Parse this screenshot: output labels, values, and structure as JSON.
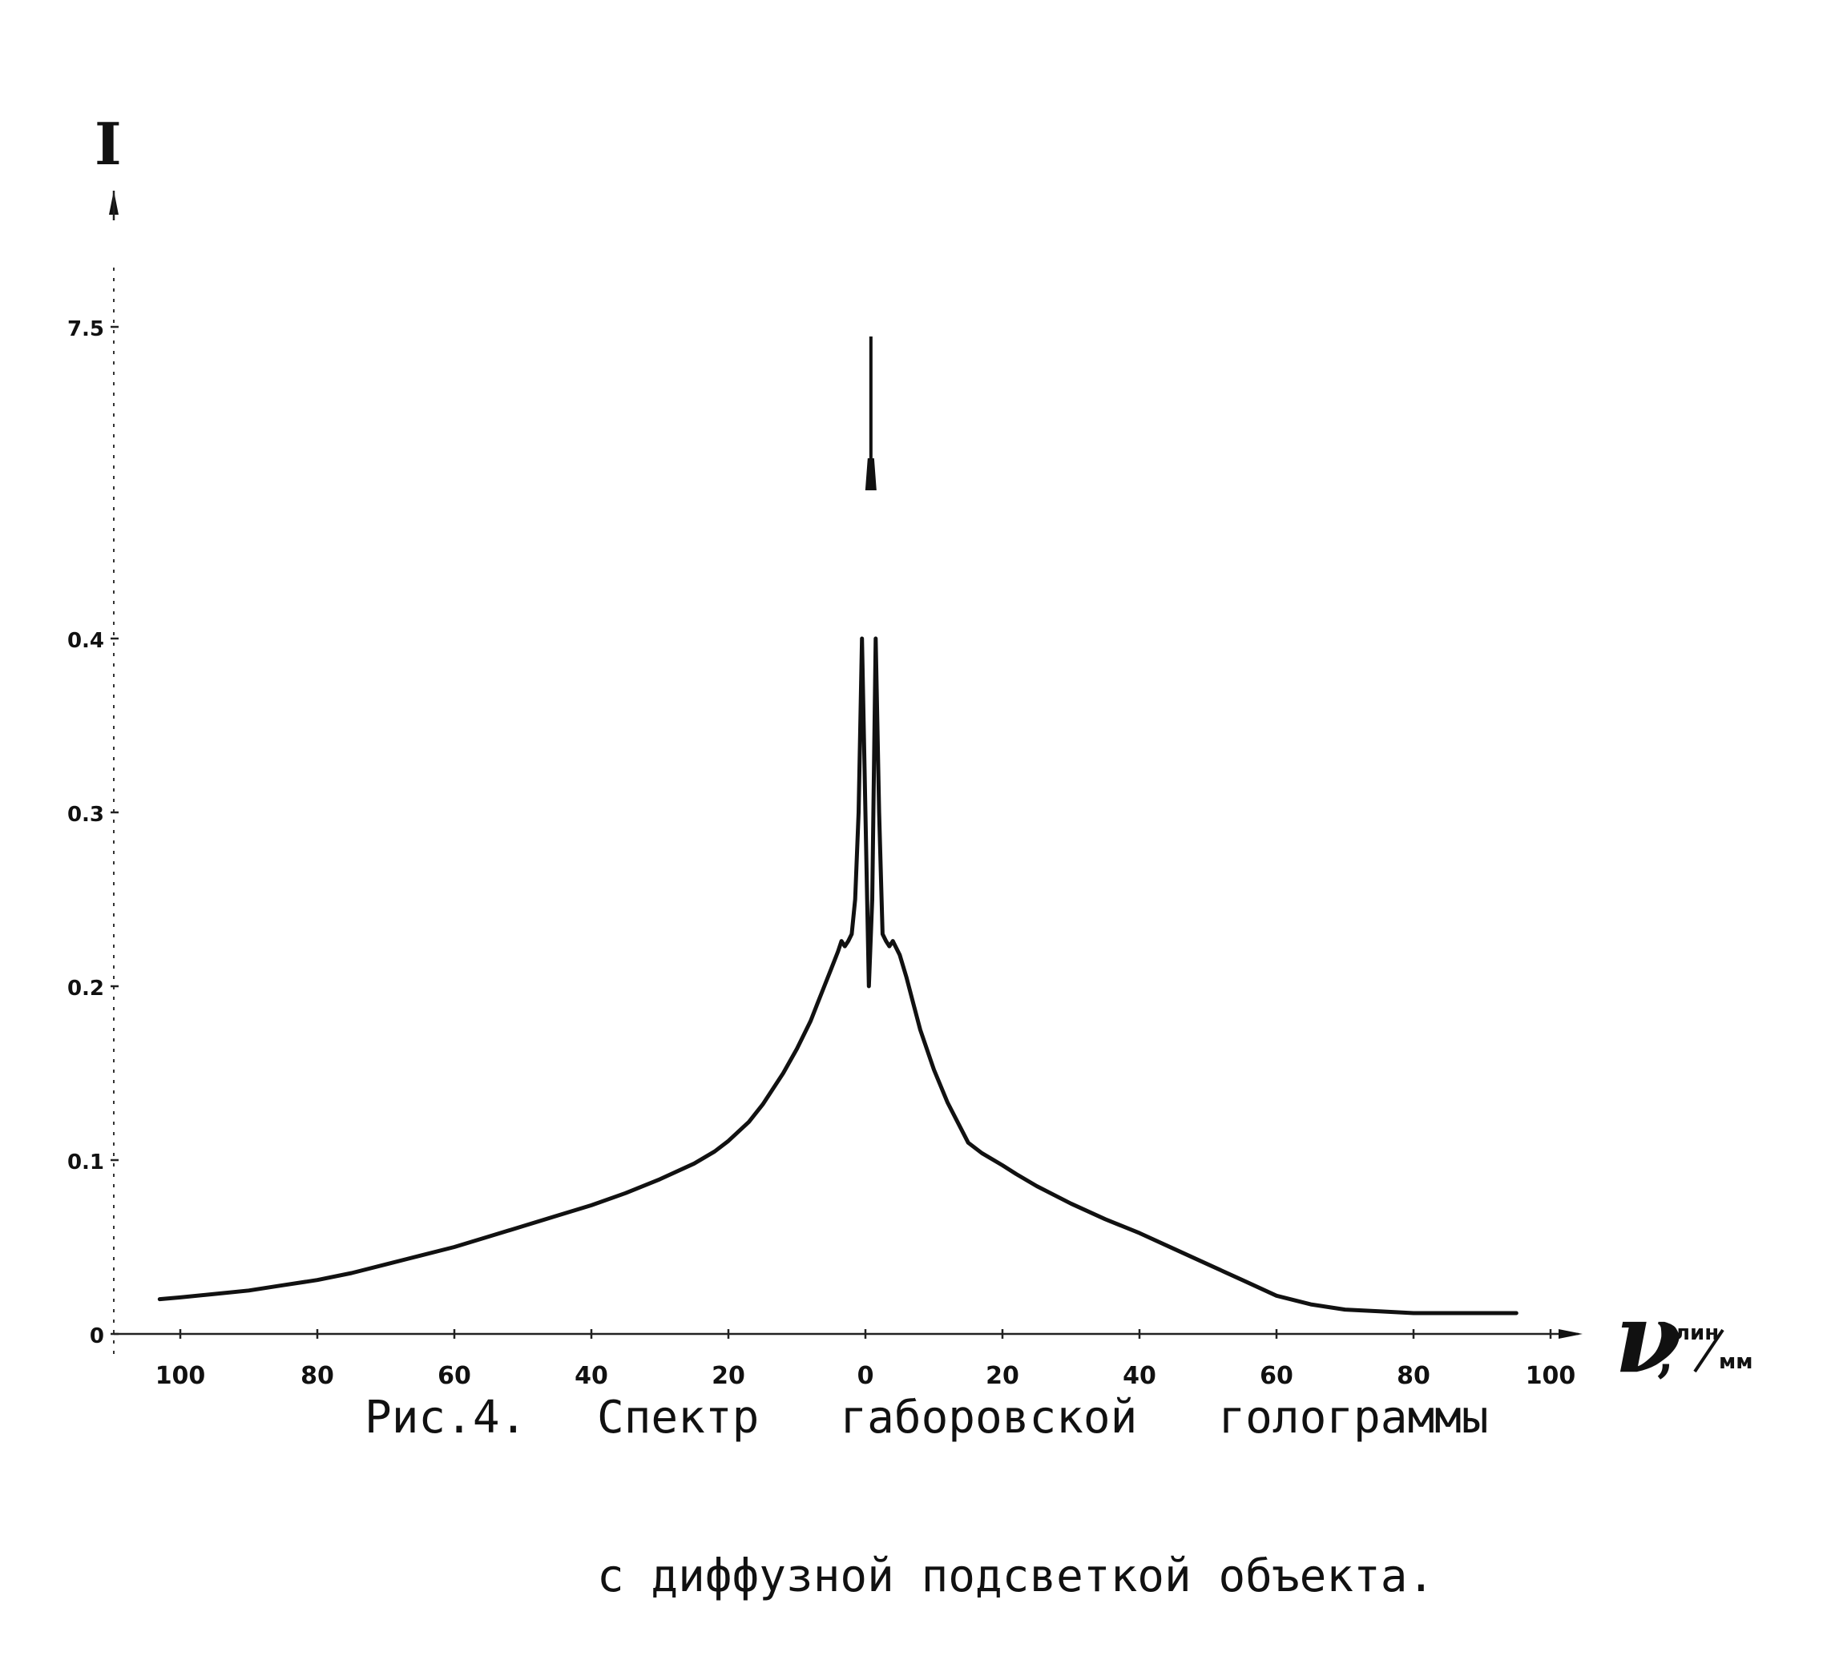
{
  "chart_data": {
    "type": "line",
    "ylabel": "I",
    "xlabel_symbol": "ν",
    "xlabel_unit_numerator": "лин",
    "xlabel_unit_denominator": "мм",
    "x_tick_labels": [
      "100",
      "80",
      "60",
      "40",
      "20",
      "0",
      "20",
      "40",
      "60",
      "80",
      "100"
    ],
    "x_tick_values": [
      -100,
      -80,
      -60,
      -40,
      -20,
      0,
      20,
      40,
      60,
      80,
      100
    ],
    "y_tick_labels": [
      "0",
      "0.1",
      "0.2",
      "0.3",
      "0.4",
      "7.5"
    ],
    "y_tick_values": [
      0,
      0.1,
      0.2,
      0.3,
      0.4,
      7.5
    ],
    "y_axis_break": true,
    "xlim": [
      -104,
      100
    ],
    "grid": false,
    "series": [
      {
        "values_x": [
          -103,
          -100,
          -95,
          -90,
          -85,
          -80,
          -75,
          -70,
          -65,
          -60,
          -55,
          -50,
          -45,
          -40,
          -35,
          -30,
          -25,
          -22,
          -20,
          -17,
          -15,
          -12,
          -10,
          -8,
          -7,
          -6,
          -5,
          -4,
          -3.5,
          -3,
          -2.5,
          -2,
          -1.5,
          -1,
          -0.5,
          0,
          0.5,
          1,
          1.5,
          2,
          2.5,
          3,
          3.5,
          4,
          5,
          6,
          7,
          8,
          10,
          12,
          15,
          17,
          20,
          22,
          25,
          30,
          35,
          40,
          45,
          50,
          55,
          60,
          65,
          70,
          75,
          80,
          85,
          90,
          95
        ],
        "values_y": [
          0.02,
          0.021,
          0.023,
          0.025,
          0.028,
          0.031,
          0.035,
          0.04,
          0.045,
          0.05,
          0.056,
          0.062,
          0.068,
          0.074,
          0.081,
          0.089,
          0.098,
          0.105,
          0.111,
          0.122,
          0.132,
          0.15,
          0.164,
          0.18,
          0.19,
          0.2,
          0.21,
          0.22,
          0.226,
          0.223,
          0.226,
          0.23,
          0.25,
          0.3,
          0.4,
          0.3,
          0.2,
          0.25,
          0.4,
          0.3,
          0.23,
          0.226,
          0.223,
          0.226,
          0.218,
          0.205,
          0.19,
          0.175,
          0.152,
          0.133,
          0.11,
          0.104,
          0.097,
          0.092,
          0.085,
          0.075,
          0.066,
          0.058,
          0.049,
          0.04,
          0.031,
          0.022,
          0.017,
          0.014,
          0.013,
          0.012,
          0.012,
          0.012,
          0.012
        ]
      }
    ],
    "central_peak": {
      "x": 0.8,
      "y_label": "7.5"
    }
  },
  "caption": {
    "prefix": "Рис.4.",
    "line1": "Спектр   габоровской   голограммы",
    "line2": "с диффузной подсветкой объекта."
  },
  "colors": {
    "ink": "#111111",
    "background": "#ffffff"
  }
}
